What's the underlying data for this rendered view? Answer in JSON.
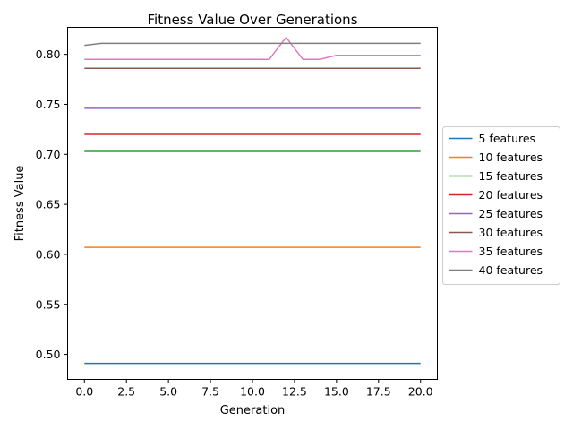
{
  "chart_data": {
    "type": "line",
    "title": "Fitness Value Over Generations",
    "xlabel": "Generation",
    "ylabel": "Fitness Value",
    "xlim": [
      -1,
      21
    ],
    "ylim": [
      0.475,
      0.827
    ],
    "xticks": [
      0,
      2.5,
      5,
      7.5,
      10,
      12.5,
      15,
      17.5,
      20
    ],
    "xtick_labels": [
      "0.0",
      "2.5",
      "5.0",
      "7.5",
      "10.0",
      "12.5",
      "15.0",
      "17.5",
      "20.0"
    ],
    "yticks": [
      0.5,
      0.55,
      0.6,
      0.65,
      0.7,
      0.75,
      0.8
    ],
    "ytick_labels": [
      "0.50",
      "0.55",
      "0.60",
      "0.65",
      "0.70",
      "0.75",
      "0.80"
    ],
    "grid": false,
    "legend_position": "right-outside",
    "x": [
      0,
      1,
      2,
      3,
      4,
      5,
      6,
      7,
      8,
      9,
      10,
      11,
      12,
      13,
      14,
      15,
      16,
      17,
      18,
      19,
      20
    ],
    "series": [
      {
        "name": "5 features",
        "color": "#1f77b4",
        "values": [
          0.491,
          0.491,
          0.491,
          0.491,
          0.491,
          0.491,
          0.491,
          0.491,
          0.491,
          0.491,
          0.491,
          0.491,
          0.491,
          0.491,
          0.491,
          0.491,
          0.491,
          0.491,
          0.491,
          0.491,
          0.491
        ]
      },
      {
        "name": "10 features",
        "color": "#ff7f0e",
        "values": [
          0.607,
          0.607,
          0.607,
          0.607,
          0.607,
          0.607,
          0.607,
          0.607,
          0.607,
          0.607,
          0.607,
          0.607,
          0.607,
          0.607,
          0.607,
          0.607,
          0.607,
          0.607,
          0.607,
          0.607,
          0.607
        ]
      },
      {
        "name": "15 features",
        "color": "#2ca02c",
        "values": [
          0.703,
          0.703,
          0.703,
          0.703,
          0.703,
          0.703,
          0.703,
          0.703,
          0.703,
          0.703,
          0.703,
          0.703,
          0.703,
          0.703,
          0.703,
          0.703,
          0.703,
          0.703,
          0.703,
          0.703,
          0.703
        ]
      },
      {
        "name": "20 features",
        "color": "#d62728",
        "values": [
          0.72,
          0.72,
          0.72,
          0.72,
          0.72,
          0.72,
          0.72,
          0.72,
          0.72,
          0.72,
          0.72,
          0.72,
          0.72,
          0.72,
          0.72,
          0.72,
          0.72,
          0.72,
          0.72,
          0.72,
          0.72
        ]
      },
      {
        "name": "25 features",
        "color": "#9467bd",
        "values": [
          0.746,
          0.746,
          0.746,
          0.746,
          0.746,
          0.746,
          0.746,
          0.746,
          0.746,
          0.746,
          0.746,
          0.746,
          0.746,
          0.746,
          0.746,
          0.746,
          0.746,
          0.746,
          0.746,
          0.746,
          0.746
        ]
      },
      {
        "name": "30 features",
        "color": "#8c564b",
        "values": [
          0.786,
          0.786,
          0.786,
          0.786,
          0.786,
          0.786,
          0.786,
          0.786,
          0.786,
          0.786,
          0.786,
          0.786,
          0.786,
          0.786,
          0.786,
          0.786,
          0.786,
          0.786,
          0.786,
          0.786,
          0.786
        ]
      },
      {
        "name": "35 features",
        "color": "#e377c2",
        "values": [
          0.795,
          0.795,
          0.795,
          0.795,
          0.795,
          0.795,
          0.795,
          0.795,
          0.795,
          0.795,
          0.795,
          0.795,
          0.817,
          0.795,
          0.795,
          0.799,
          0.799,
          0.799,
          0.799,
          0.799,
          0.799
        ]
      },
      {
        "name": "40 features",
        "color": "#7f7f7f",
        "values": [
          0.809,
          0.811,
          0.811,
          0.811,
          0.811,
          0.811,
          0.811,
          0.811,
          0.811,
          0.811,
          0.811,
          0.811,
          0.811,
          0.811,
          0.811,
          0.811,
          0.811,
          0.811,
          0.811,
          0.811,
          0.811
        ]
      }
    ]
  }
}
